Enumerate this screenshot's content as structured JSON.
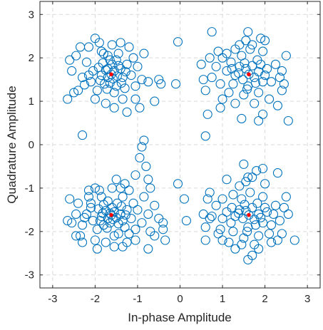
{
  "chart_data": {
    "type": "scatter",
    "title": "",
    "xlabel": "In-phase Amplitude",
    "ylabel": "Quadrature Amplitude",
    "xlim": [
      -3.3,
      3.3
    ],
    "ylim": [
      -3.3,
      3.3
    ],
    "xticks": [
      -3,
      -2,
      -1,
      0,
      1,
      2,
      3
    ],
    "yticks": [
      -3,
      -2,
      -1,
      0,
      1,
      2,
      3
    ],
    "grid": true,
    "legend": "none",
    "colors": {
      "received": "#0072BD",
      "reference": "#ff0000",
      "grid": "#d9d9d9",
      "axis": "#262626"
    },
    "series": [
      {
        "marker": "open-circle",
        "points": [
          [
            -1.62,
            1.62
          ],
          [
            -1.55,
            1.7
          ],
          [
            -1.7,
            1.55
          ],
          [
            -1.48,
            1.58
          ],
          [
            -1.75,
            1.72
          ],
          [
            -1.6,
            1.85
          ],
          [
            -1.85,
            1.6
          ],
          [
            -1.4,
            1.75
          ],
          [
            -1.65,
            1.42
          ],
          [
            -1.92,
            1.78
          ],
          [
            -1.35,
            1.55
          ],
          [
            -1.78,
            1.4
          ],
          [
            -1.5,
            1.95
          ],
          [
            -2.05,
            1.7
          ],
          [
            -1.25,
            1.85
          ],
          [
            -1.7,
            2.05
          ],
          [
            -2.1,
            1.45
          ],
          [
            -1.3,
            1.3
          ],
          [
            -1.95,
            1.25
          ],
          [
            -1.45,
            2.1
          ],
          [
            -2.2,
            1.9
          ],
          [
            -1.15,
            1.6
          ],
          [
            -1.85,
            2.15
          ],
          [
            -2.3,
            1.55
          ],
          [
            -1.1,
            2.0
          ],
          [
            -1.55,
            1.2
          ],
          [
            -2.0,
            1.05
          ],
          [
            -1.35,
            1.05
          ],
          [
            -1.75,
            0.95
          ],
          [
            -2.4,
            1.25
          ],
          [
            -1.05,
            1.35
          ],
          [
            -2.45,
            2.05
          ],
          [
            -1.2,
            2.25
          ],
          [
            -1.6,
            2.3
          ],
          [
            -1.9,
            2.35
          ],
          [
            -2.15,
            2.25
          ],
          [
            -1.0,
            1.8
          ],
          [
            -0.9,
            1.5
          ],
          [
            -0.85,
            2.1
          ],
          [
            -2.55,
            1.7
          ],
          [
            -2.6,
            1.95
          ],
          [
            -1.4,
            2.35
          ],
          [
            -1.05,
            1.05
          ],
          [
            -1.55,
            0.85
          ],
          [
            -1.25,
            0.75
          ],
          [
            -0.75,
            1.45
          ],
          [
            -0.6,
            1.0
          ],
          [
            -2.65,
            1.05
          ],
          [
            -2.35,
            2.25
          ],
          [
            -2.0,
            2.45
          ],
          [
            -1.8,
            2.1
          ],
          [
            -1.65,
            1.95
          ],
          [
            -1.45,
            1.82
          ],
          [
            -1.72,
            1.28
          ],
          [
            -1.88,
            1.48
          ],
          [
            -1.38,
            1.42
          ],
          [
            -1.58,
            1.52
          ],
          [
            -1.82,
            1.88
          ],
          [
            -1.28,
            1.68
          ],
          [
            -2.25,
            1.38
          ],
          [
            -0.5,
            1.5
          ],
          [
            -0.45,
            1.4
          ],
          [
            -2.3,
            0.22
          ],
          [
            -0.1,
            1.4
          ],
          [
            -0.05,
            2.37
          ],
          [
            -2.5,
            1.2
          ],
          [
            -0.95,
            0.85
          ],
          [
            -1.5,
            1.35
          ],
          [
            -1.7,
            1.75
          ],
          [
            -2.15,
            1.6
          ],
          [
            1.62,
            1.62
          ],
          [
            1.55,
            1.75
          ],
          [
            1.75,
            1.55
          ],
          [
            1.48,
            1.5
          ],
          [
            1.7,
            1.82
          ],
          [
            1.85,
            1.68
          ],
          [
            1.4,
            1.8
          ],
          [
            1.95,
            1.45
          ],
          [
            1.3,
            1.6
          ],
          [
            1.6,
            1.35
          ],
          [
            1.82,
            1.95
          ],
          [
            1.2,
            1.9
          ],
          [
            2.05,
            1.75
          ],
          [
            1.45,
            2.05
          ],
          [
            1.95,
            2.15
          ],
          [
            1.25,
            1.4
          ],
          [
            2.15,
            1.45
          ],
          [
            1.65,
            2.2
          ],
          [
            1.1,
            1.7
          ],
          [
            2.25,
            1.85
          ],
          [
            1.0,
            2.0
          ],
          [
            2.35,
            1.55
          ],
          [
            1.5,
            1.15
          ],
          [
            1.85,
            1.2
          ],
          [
            1.15,
            1.2
          ],
          [
            2.1,
            1.05
          ],
          [
            1.4,
            2.3
          ],
          [
            2.0,
            2.4
          ],
          [
            0.95,
            1.4
          ],
          [
            1.75,
            0.95
          ],
          [
            1.3,
            0.95
          ],
          [
            2.4,
            1.25
          ],
          [
            0.85,
            1.8
          ],
          [
            0.75,
            1.55
          ],
          [
            2.5,
            2.05
          ],
          [
            1.55,
            2.4
          ],
          [
            1.0,
            1.05
          ],
          [
            2.3,
            0.9
          ],
          [
            0.7,
            2.0
          ],
          [
            0.6,
            1.25
          ],
          [
            1.7,
            2.3
          ],
          [
            1.38,
            1.65
          ],
          [
            1.78,
            1.42
          ],
          [
            1.52,
            1.88
          ],
          [
            1.9,
            1.85
          ],
          [
            1.22,
            1.75
          ],
          [
            2.0,
            1.6
          ],
          [
            1.58,
            1.28
          ],
          [
            1.9,
            2.45
          ],
          [
            0.75,
            2.6
          ],
          [
            0.6,
            0.2
          ],
          [
            0.95,
            0.85
          ],
          [
            1.45,
            0.6
          ],
          [
            1.85,
            0.55
          ],
          [
            2.55,
            0.55
          ],
          [
            1.95,
            0.7
          ],
          [
            0.5,
            1.85
          ],
          [
            0.55,
            1.5
          ],
          [
            2.4,
            1.7
          ],
          [
            1.3,
            2.2
          ],
          [
            1.6,
            2.6
          ],
          [
            2.45,
            1.4
          ],
          [
            1.1,
            2.1
          ],
          [
            0.9,
            2.15
          ],
          [
            0.65,
            0.7
          ],
          [
            -1.62,
            -1.62
          ],
          [
            -1.55,
            -1.55
          ],
          [
            -1.7,
            -1.7
          ],
          [
            -1.5,
            -1.68
          ],
          [
            -1.75,
            -1.52
          ],
          [
            -1.6,
            -1.45
          ],
          [
            -1.85,
            -1.65
          ],
          [
            -1.4,
            -1.6
          ],
          [
            -1.65,
            -1.8
          ],
          [
            -1.92,
            -1.48
          ],
          [
            -1.35,
            -1.75
          ],
          [
            -1.8,
            -1.85
          ],
          [
            -1.48,
            -1.35
          ],
          [
            -2.05,
            -1.75
          ],
          [
            -1.25,
            -1.5
          ],
          [
            -1.7,
            -1.3
          ],
          [
            -2.1,
            -1.45
          ],
          [
            -1.3,
            -1.9
          ],
          [
            -1.95,
            -1.95
          ],
          [
            -1.45,
            -2.05
          ],
          [
            -2.2,
            -1.6
          ],
          [
            -1.15,
            -1.7
          ],
          [
            -1.85,
            -1.2
          ],
          [
            -2.3,
            -1.85
          ],
          [
            -1.1,
            -1.35
          ],
          [
            -1.55,
            -2.1
          ],
          [
            -2.0,
            -2.2
          ],
          [
            -1.35,
            -1.2
          ],
          [
            -1.75,
            -2.25
          ],
          [
            -2.4,
            -1.35
          ],
          [
            -1.05,
            -1.95
          ],
          [
            -2.45,
            -1.6
          ],
          [
            -1.2,
            -1.05
          ],
          [
            -1.6,
            -1.0
          ],
          [
            -1.9,
            -1.05
          ],
          [
            -2.15,
            -1.2
          ],
          [
            -1.0,
            -1.5
          ],
          [
            -0.9,
            -1.8
          ],
          [
            -0.85,
            -1.2
          ],
          [
            -2.55,
            -1.8
          ],
          [
            -2.6,
            -1.25
          ],
          [
            -1.4,
            -1.0
          ],
          [
            -1.05,
            -2.2
          ],
          [
            -1.55,
            -2.35
          ],
          [
            -1.25,
            -2.25
          ],
          [
            -0.75,
            -1.6
          ],
          [
            -0.6,
            -1.4
          ],
          [
            -2.65,
            -1.75
          ],
          [
            -2.35,
            -2.1
          ],
          [
            -2.0,
            -1.0
          ],
          [
            -1.8,
            -1.38
          ],
          [
            -1.65,
            -1.58
          ],
          [
            -1.45,
            -1.82
          ],
          [
            -1.72,
            -1.92
          ],
          [
            -1.88,
            -1.75
          ],
          [
            -1.38,
            -1.42
          ],
          [
            -1.58,
            -1.72
          ],
          [
            -1.82,
            -1.58
          ],
          [
            -1.28,
            -1.62
          ],
          [
            -2.25,
            -1.68
          ],
          [
            -0.8,
            -0.5
          ],
          [
            -0.95,
            -0.3
          ],
          [
            -0.9,
            -0.05
          ],
          [
            -0.85,
            0.1
          ],
          [
            -1.05,
            -0.7
          ],
          [
            -0.4,
            -1.95
          ],
          [
            -0.6,
            -2.1
          ],
          [
            -0.35,
            -2.2
          ],
          [
            -0.4,
            -1.8
          ],
          [
            -0.5,
            -1.7
          ],
          [
            -0.7,
            -2.0
          ],
          [
            -0.05,
            -0.9
          ],
          [
            0.1,
            -1.25
          ],
          [
            0.15,
            -1.75
          ],
          [
            -2.45,
            -2.1
          ],
          [
            -2.3,
            -2.25
          ],
          [
            -1.95,
            -2.4
          ],
          [
            -0.75,
            -0.8
          ],
          [
            -2.15,
            -1.05
          ],
          [
            -0.75,
            -2.4
          ],
          [
            -1.5,
            -0.8
          ],
          [
            -1.3,
            -0.9
          ],
          [
            -1.35,
            -2.35
          ],
          [
            -2.1,
            -1.35
          ],
          [
            -1.2,
            -2.05
          ],
          [
            -0.7,
            -1.0
          ],
          [
            1.62,
            -1.62
          ],
          [
            1.55,
            -1.52
          ],
          [
            1.75,
            -1.72
          ],
          [
            1.48,
            -1.7
          ],
          [
            1.7,
            -1.45
          ],
          [
            1.85,
            -1.6
          ],
          [
            1.4,
            -1.5
          ],
          [
            1.95,
            -1.8
          ],
          [
            1.3,
            -1.65
          ],
          [
            1.6,
            -1.9
          ],
          [
            1.82,
            -1.35
          ],
          [
            1.2,
            -1.8
          ],
          [
            2.05,
            -1.55
          ],
          [
            1.45,
            -1.25
          ],
          [
            1.95,
            -1.2
          ],
          [
            1.25,
            -2.0
          ],
          [
            2.15,
            -1.85
          ],
          [
            1.65,
            -1.1
          ],
          [
            1.1,
            -1.55
          ],
          [
            2.25,
            -1.4
          ],
          [
            1.0,
            -1.25
          ],
          [
            2.35,
            -1.75
          ],
          [
            1.5,
            -2.15
          ],
          [
            1.85,
            -2.1
          ],
          [
            1.15,
            -2.25
          ],
          [
            2.1,
            -2.05
          ],
          [
            1.4,
            -0.95
          ],
          [
            2.0,
            -0.9
          ],
          [
            0.95,
            -1.95
          ],
          [
            1.75,
            -2.3
          ],
          [
            1.3,
            -2.4
          ],
          [
            2.4,
            -2.05
          ],
          [
            0.85,
            -1.4
          ],
          [
            0.75,
            -1.65
          ],
          [
            2.5,
            -1.2
          ],
          [
            1.55,
            -0.85
          ],
          [
            1.0,
            -2.2
          ],
          [
            2.3,
            -2.2
          ],
          [
            0.7,
            -1.1
          ],
          [
            0.6,
            -1.9
          ],
          [
            1.7,
            -0.75
          ],
          [
            1.38,
            -1.58
          ],
          [
            1.78,
            -1.85
          ],
          [
            1.52,
            -1.38
          ],
          [
            1.9,
            -1.68
          ],
          [
            1.22,
            -1.45
          ],
          [
            2.0,
            -1.45
          ],
          [
            1.58,
            -2.0
          ],
          [
            1.5,
            -0.45
          ],
          [
            1.95,
            -0.55
          ],
          [
            1.8,
            -0.6
          ],
          [
            1.6,
            -0.75
          ],
          [
            2.3,
            -0.65
          ],
          [
            1.1,
            -0.8
          ],
          [
            0.6,
            -2.2
          ],
          [
            0.55,
            -1.6
          ],
          [
            0.7,
            -1.7
          ],
          [
            2.7,
            -2.2
          ],
          [
            2.55,
            -1.6
          ],
          [
            1.6,
            -2.65
          ],
          [
            1.7,
            -2.55
          ],
          [
            1.45,
            -2.3
          ],
          [
            1.0,
            -1.7
          ],
          [
            2.2,
            -1.6
          ],
          [
            1.25,
            -1.15
          ],
          [
            2.45,
            -1.45
          ],
          [
            0.65,
            -1.25
          ],
          [
            0.9,
            -2.05
          ],
          [
            1.85,
            -2.4
          ],
          [
            2.15,
            -2.25
          ]
        ]
      },
      {
        "marker": "filled-dot",
        "points": [
          [
            -1.62,
            1.62
          ],
          [
            1.62,
            1.62
          ],
          [
            -1.62,
            -1.62
          ],
          [
            1.62,
            -1.62
          ]
        ]
      }
    ]
  }
}
